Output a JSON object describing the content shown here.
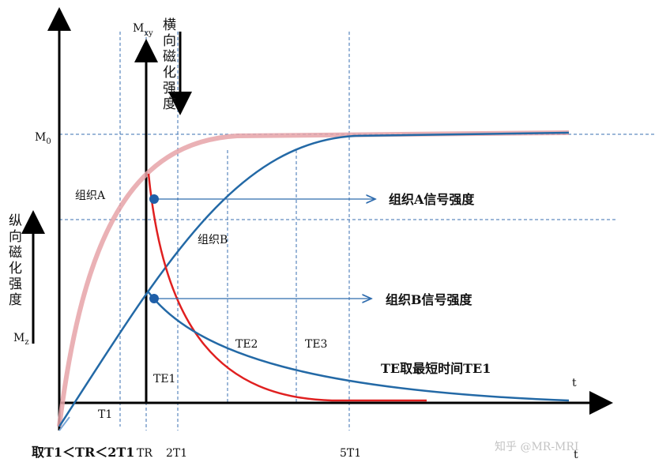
{
  "labels": {
    "mxy_symbol": "M",
    "mxy_subscript": "xy",
    "transverse": "横向磁化强度",
    "m0_symbol": "M",
    "m0_subscript": "0",
    "tissue_a": "组织A",
    "signal_a": "组织A信号强度",
    "tissue_b": "组织B",
    "signal_b": "组织B信号强度",
    "longitudinal": "纵向磁化强度",
    "mz_symbol": "M",
    "mz_subscript": "z",
    "te2": "TE2",
    "te3": "TE3",
    "te1": "TE1",
    "te_note": "TE取最短时间TE1",
    "inner_t": "t",
    "t1": "T1",
    "condition": "取T1＜TR＜2T1",
    "tr": "TR",
    "two_t1": "2T1",
    "five_t1": "5T1",
    "outer_t": "t",
    "watermark": "知乎 @MR-MRI"
  }
}
